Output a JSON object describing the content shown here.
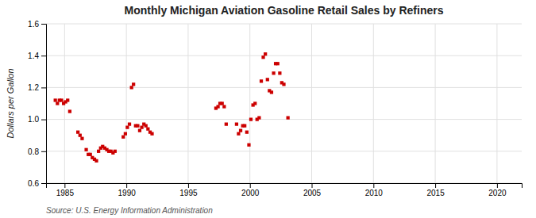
{
  "chart_data": {
    "type": "scatter",
    "title": "Monthly Michigan Aviation Gasoline Retail Sales by Refiners",
    "y_label": "Dollars per Gallon",
    "source": "Source: U.S. Energy Information Administration",
    "xlim": [
      1983.5,
      2022
    ],
    "ylim": [
      0.6,
      1.6
    ],
    "xticks": [
      1985,
      1990,
      1995,
      2000,
      2005,
      2010,
      2015,
      2020
    ],
    "yticks": [
      0.6,
      0.8,
      {
        "value": 1.0,
        "label": "1.0"
      },
      1.2,
      1.4,
      1.6
    ],
    "grid": true,
    "color": "#cc0000",
    "marker": "square",
    "x": [
      1984.25,
      1984.42,
      1984.58,
      1984.75,
      1984.92,
      1985.08,
      1985.25,
      1985.42,
      1986.08,
      1986.25,
      1986.42,
      1986.75,
      1986.92,
      1987.08,
      1987.25,
      1987.42,
      1987.58,
      1987.75,
      1987.92,
      1988.08,
      1988.25,
      1988.42,
      1988.58,
      1988.75,
      1988.92,
      1989.08,
      1989.75,
      1989.92,
      1990.08,
      1990.25,
      1990.42,
      1990.58,
      1990.75,
      1990.92,
      1991.08,
      1991.25,
      1991.42,
      1991.58,
      1991.75,
      1991.92,
      1992.08,
      1997.25,
      1997.42,
      1997.58,
      1997.75,
      1997.92,
      1998.08,
      1998.92,
      1999.08,
      1999.25,
      1999.42,
      1999.58,
      1999.75,
      1999.92,
      2000.08,
      2000.25,
      2000.42,
      2000.58,
      2000.75,
      2000.92,
      2001.08,
      2001.25,
      2001.42,
      2001.58,
      2001.75,
      2001.92,
      2002.08,
      2002.25,
      2002.42,
      2002.58,
      2002.75,
      2003.08
    ],
    "values": [
      1.12,
      1.1,
      1.12,
      1.12,
      1.1,
      1.11,
      1.12,
      1.05,
      0.92,
      0.9,
      0.88,
      0.81,
      0.78,
      0.78,
      0.76,
      0.75,
      0.74,
      0.8,
      0.82,
      0.83,
      0.82,
      0.81,
      0.8,
      0.8,
      0.79,
      0.8,
      0.89,
      0.91,
      0.95,
      0.97,
      1.2,
      1.22,
      0.96,
      0.96,
      0.93,
      0.95,
      0.97,
      0.96,
      0.94,
      0.92,
      0.91,
      1.07,
      1.08,
      1.1,
      1.1,
      1.08,
      0.97,
      0.97,
      0.91,
      0.93,
      0.96,
      0.96,
      0.92,
      0.84,
      1.0,
      1.09,
      1.1,
      1.0,
      1.01,
      1.24,
      1.39,
      1.41,
      1.25,
      1.18,
      1.17,
      1.29,
      1.35,
      1.35,
      1.29,
      1.23,
      1.22,
      1.01
    ]
  }
}
